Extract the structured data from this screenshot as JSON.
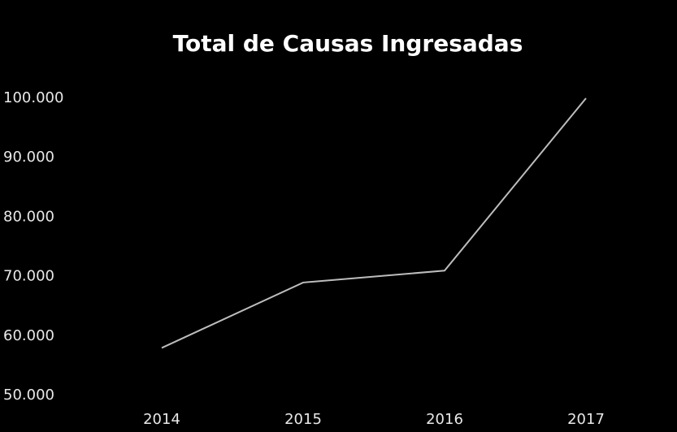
{
  "chart_data": {
    "type": "line",
    "title": "Total de Causas Ingresadas",
    "categories": [
      "2014",
      "2015",
      "2016",
      "2017"
    ],
    "series": [
      {
        "name": null,
        "color": "#bdbdbd",
        "values": [
          58000,
          69000,
          71000,
          100000
        ]
      }
    ],
    "ylim": [
      50000,
      100000
    ],
    "yticks": [
      {
        "value": 50000,
        "label": "50.000"
      },
      {
        "value": 60000,
        "label": "60.000"
      },
      {
        "value": 70000,
        "label": "70.000"
      },
      {
        "value": 80000,
        "label": "80.000"
      },
      {
        "value": 90000,
        "label": "90.000"
      },
      {
        "value": 100000,
        "label": "100.000"
      }
    ],
    "grid": false
  }
}
